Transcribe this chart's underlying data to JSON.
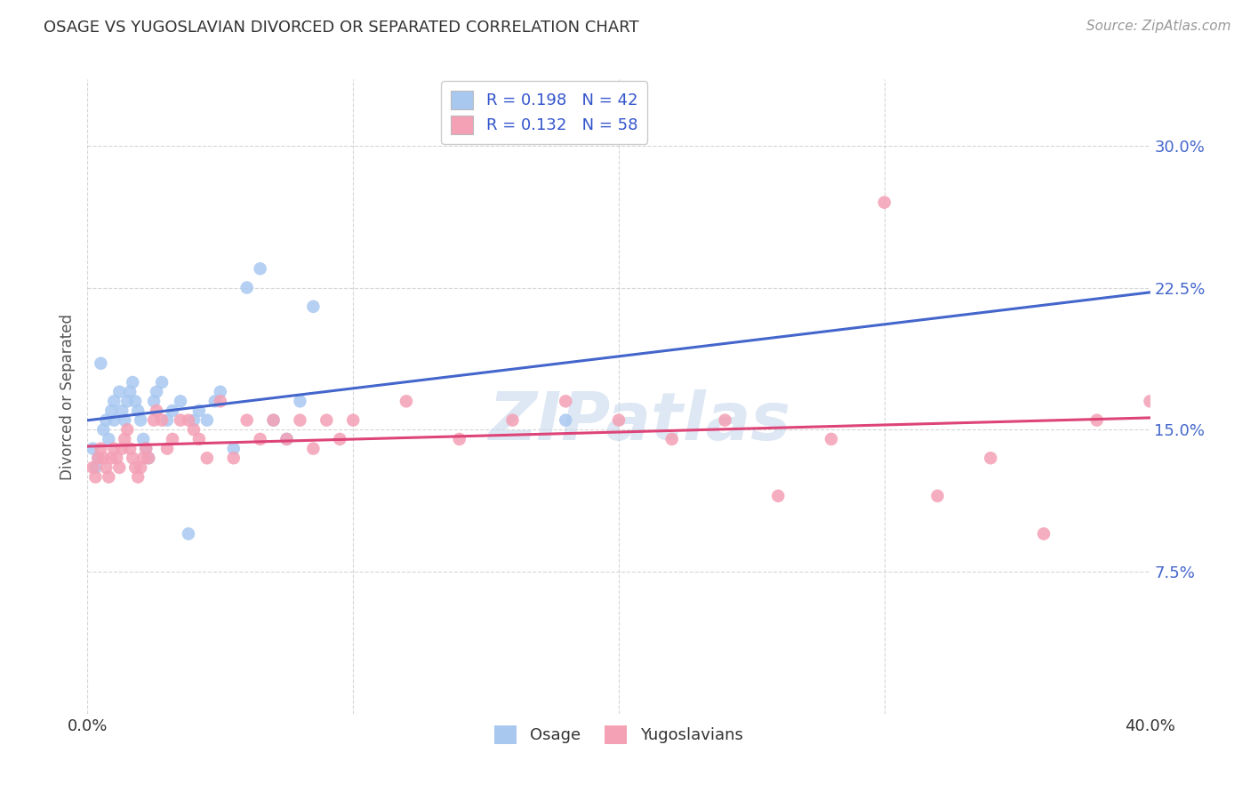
{
  "title": "OSAGE VS YUGOSLAVIAN DIVORCED OR SEPARATED CORRELATION CHART",
  "source": "Source: ZipAtlas.com",
  "ylabel": "Divorced or Separated",
  "yticks": [
    "7.5%",
    "15.0%",
    "22.5%",
    "30.0%"
  ],
  "ytick_vals": [
    0.075,
    0.15,
    0.225,
    0.3
  ],
  "xlim": [
    0.0,
    0.4
  ],
  "ylim": [
    0.0,
    0.335
  ],
  "blue_color": "#a8c8f0",
  "pink_color": "#f4a0b5",
  "blue_line_color": "#4466cc",
  "pink_line_color": "#dd4477",
  "watermark": "ZIPatlas",
  "osage_x": [
    0.002,
    0.003,
    0.004,
    0.005,
    0.006,
    0.007,
    0.008,
    0.009,
    0.01,
    0.01,
    0.012,
    0.013,
    0.014,
    0.015,
    0.016,
    0.017,
    0.018,
    0.019,
    0.02,
    0.021,
    0.022,
    0.023,
    0.025,
    0.026,
    0.028,
    0.03,
    0.032,
    0.035,
    0.038,
    0.04,
    0.042,
    0.045,
    0.048,
    0.05,
    0.055,
    0.06,
    0.065,
    0.07,
    0.075,
    0.08,
    0.085,
    0.18
  ],
  "osage_y": [
    0.14,
    0.13,
    0.135,
    0.185,
    0.15,
    0.155,
    0.145,
    0.16,
    0.155,
    0.165,
    0.17,
    0.16,
    0.155,
    0.165,
    0.17,
    0.175,
    0.165,
    0.16,
    0.155,
    0.145,
    0.14,
    0.135,
    0.165,
    0.17,
    0.175,
    0.155,
    0.16,
    0.165,
    0.095,
    0.155,
    0.16,
    0.155,
    0.165,
    0.17,
    0.14,
    0.225,
    0.235,
    0.155,
    0.145,
    0.165,
    0.215,
    0.155
  ],
  "yugo_x": [
    0.002,
    0.003,
    0.004,
    0.005,
    0.006,
    0.007,
    0.008,
    0.009,
    0.01,
    0.011,
    0.012,
    0.013,
    0.014,
    0.015,
    0.016,
    0.017,
    0.018,
    0.019,
    0.02,
    0.021,
    0.022,
    0.023,
    0.025,
    0.026,
    0.028,
    0.03,
    0.032,
    0.035,
    0.038,
    0.04,
    0.042,
    0.045,
    0.05,
    0.055,
    0.06,
    0.065,
    0.07,
    0.075,
    0.08,
    0.085,
    0.09,
    0.095,
    0.1,
    0.12,
    0.14,
    0.16,
    0.18,
    0.2,
    0.22,
    0.24,
    0.26,
    0.28,
    0.3,
    0.32,
    0.34,
    0.36,
    0.38,
    0.4
  ],
  "yugo_y": [
    0.13,
    0.125,
    0.135,
    0.14,
    0.135,
    0.13,
    0.125,
    0.135,
    0.14,
    0.135,
    0.13,
    0.14,
    0.145,
    0.15,
    0.14,
    0.135,
    0.13,
    0.125,
    0.13,
    0.135,
    0.14,
    0.135,
    0.155,
    0.16,
    0.155,
    0.14,
    0.145,
    0.155,
    0.155,
    0.15,
    0.145,
    0.135,
    0.165,
    0.135,
    0.155,
    0.145,
    0.155,
    0.145,
    0.155,
    0.14,
    0.155,
    0.145,
    0.155,
    0.165,
    0.145,
    0.155,
    0.165,
    0.155,
    0.145,
    0.155,
    0.115,
    0.145,
    0.27,
    0.115,
    0.135,
    0.095,
    0.155,
    0.165
  ],
  "background_color": "#ffffff",
  "grid_color": "#cccccc",
  "xtick_vals": [
    0.0,
    0.1,
    0.2,
    0.3,
    0.4
  ],
  "blue_R": "0.198",
  "blue_N": "42",
  "pink_R": "0.132",
  "pink_N": "58"
}
